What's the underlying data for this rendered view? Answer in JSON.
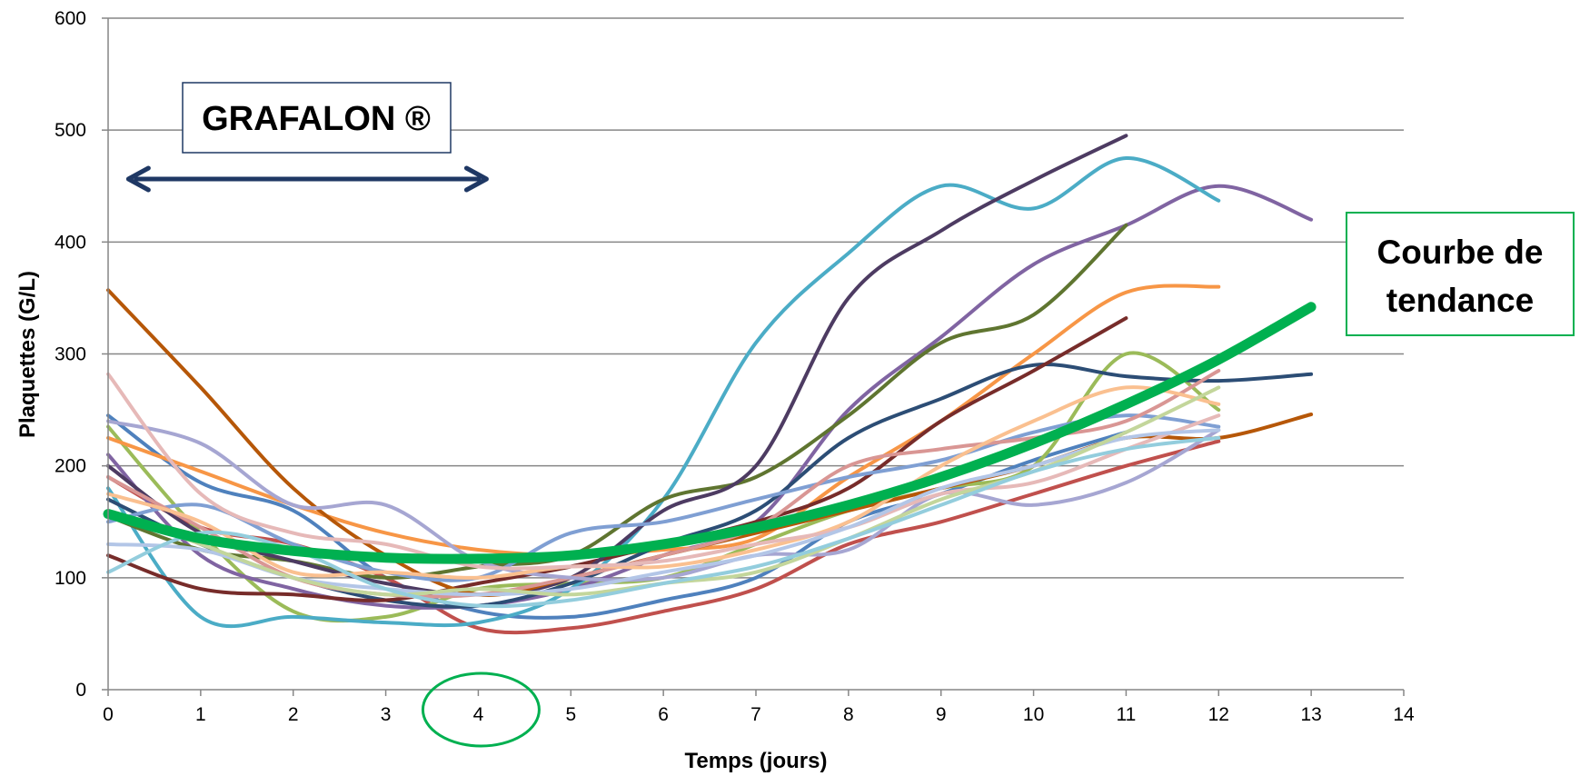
{
  "chart_data": {
    "type": "line",
    "xlabel": "Temps (jours)",
    "ylabel": "Plaquettes (G/L)",
    "xlim": [
      0,
      14
    ],
    "ylim": [
      0,
      600
    ],
    "x_ticks": [
      0,
      1,
      2,
      3,
      4,
      5,
      6,
      7,
      8,
      9,
      10,
      11,
      12,
      13,
      14
    ],
    "y_ticks": [
      0,
      100,
      200,
      300,
      400,
      500,
      600
    ],
    "grid": "horizontal",
    "series": [
      {
        "color": "#4F81BD",
        "points": [
          [
            0,
            245
          ],
          [
            1,
            185
          ],
          [
            2,
            160
          ],
          [
            3,
            100
          ],
          [
            4,
            70
          ],
          [
            5,
            65
          ],
          [
            6,
            80
          ],
          [
            7,
            100
          ],
          [
            8,
            150
          ],
          [
            9,
            175
          ],
          [
            10,
            205
          ],
          [
            11,
            230
          ]
        ]
      },
      {
        "color": "#C0504D",
        "points": [
          [
            0,
            190
          ],
          [
            1,
            145
          ],
          [
            2,
            130
          ],
          [
            3,
            100
          ],
          [
            4,
            55
          ],
          [
            5,
            55
          ],
          [
            6,
            70
          ],
          [
            7,
            90
          ],
          [
            8,
            130
          ],
          [
            9,
            150
          ],
          [
            10,
            175
          ],
          [
            11,
            200
          ],
          [
            12,
            222
          ]
        ]
      },
      {
        "color": "#9BBB59",
        "points": [
          [
            0,
            235
          ],
          [
            1,
            140
          ],
          [
            2,
            70
          ],
          [
            3,
            65
          ],
          [
            4,
            90
          ],
          [
            5,
            95
          ],
          [
            6,
            100
          ],
          [
            7,
            130
          ],
          [
            8,
            160
          ],
          [
            9,
            180
          ],
          [
            10,
            200
          ],
          [
            11,
            300
          ],
          [
            12,
            250
          ]
        ]
      },
      {
        "color": "#8064A2",
        "points": [
          [
            0,
            210
          ],
          [
            1,
            120
          ],
          [
            2,
            90
          ],
          [
            3,
            75
          ],
          [
            4,
            75
          ],
          [
            5,
            90
          ],
          [
            6,
            120
          ],
          [
            7,
            150
          ],
          [
            8,
            250
          ],
          [
            9,
            315
          ],
          [
            10,
            380
          ],
          [
            11,
            415
          ],
          [
            12,
            450
          ],
          [
            13,
            420
          ]
        ]
      },
      {
        "color": "#4BACC6",
        "points": [
          [
            0,
            180
          ],
          [
            1,
            65
          ],
          [
            2,
            65
          ],
          [
            3,
            60
          ],
          [
            4,
            60
          ],
          [
            5,
            90
          ],
          [
            6,
            170
          ],
          [
            7,
            310
          ],
          [
            8,
            390
          ],
          [
            9,
            450
          ],
          [
            10,
            430
          ],
          [
            11,
            475
          ],
          [
            12,
            437
          ]
        ]
      },
      {
        "color": "#F79646",
        "points": [
          [
            0,
            225
          ],
          [
            1,
            195
          ],
          [
            2,
            165
          ],
          [
            3,
            140
          ],
          [
            4,
            125
          ],
          [
            5,
            120
          ],
          [
            6,
            125
          ],
          [
            7,
            135
          ],
          [
            8,
            190
          ],
          [
            9,
            240
          ],
          [
            10,
            300
          ],
          [
            11,
            355
          ],
          [
            12,
            360
          ]
        ]
      },
      {
        "color": "#2C4D75",
        "points": [
          [
            0,
            170
          ],
          [
            1,
            130
          ],
          [
            2,
            100
          ],
          [
            3,
            80
          ],
          [
            4,
            75
          ],
          [
            5,
            95
          ],
          [
            6,
            130
          ],
          [
            7,
            160
          ],
          [
            8,
            225
          ],
          [
            9,
            260
          ],
          [
            10,
            290
          ],
          [
            11,
            280
          ],
          [
            12,
            276
          ],
          [
            13,
            282
          ]
        ]
      },
      {
        "color": "#772C2A",
        "points": [
          [
            0,
            120
          ],
          [
            1,
            90
          ],
          [
            2,
            85
          ],
          [
            3,
            80
          ],
          [
            4,
            95
          ],
          [
            5,
            110
          ],
          [
            6,
            130
          ],
          [
            7,
            150
          ],
          [
            8,
            180
          ],
          [
            9,
            240
          ],
          [
            10,
            285
          ],
          [
            11,
            332
          ]
        ]
      },
      {
        "color": "#5F7530",
        "points": [
          [
            0,
            155
          ],
          [
            1,
            125
          ],
          [
            2,
            115
          ],
          [
            3,
            100
          ],
          [
            4,
            110
          ],
          [
            5,
            120
          ],
          [
            6,
            170
          ],
          [
            7,
            190
          ],
          [
            8,
            245
          ],
          [
            9,
            310
          ],
          [
            10,
            335
          ],
          [
            11,
            415
          ]
        ]
      },
      {
        "color": "#4D3B62",
        "points": [
          [
            0,
            200
          ],
          [
            1,
            140
          ],
          [
            2,
            115
          ],
          [
            3,
            95
          ],
          [
            4,
            85
          ],
          [
            5,
            100
          ],
          [
            6,
            160
          ],
          [
            7,
            200
          ],
          [
            8,
            350
          ],
          [
            9,
            410
          ],
          [
            10,
            455
          ],
          [
            11,
            495
          ]
        ]
      },
      {
        "color": "#B65708",
        "points": [
          [
            0,
            357
          ],
          [
            1,
            270
          ],
          [
            2,
            180
          ],
          [
            3,
            120
          ],
          [
            4,
            85
          ],
          [
            5,
            100
          ],
          [
            6,
            120
          ],
          [
            7,
            140
          ],
          [
            8,
            160
          ],
          [
            9,
            180
          ],
          [
            10,
            200
          ],
          [
            11,
            225
          ],
          [
            12,
            225
          ],
          [
            13,
            246
          ]
        ]
      },
      {
        "color": "#7F9FD3",
        "points": [
          [
            0,
            150
          ],
          [
            1,
            165
          ],
          [
            2,
            130
          ],
          [
            3,
            105
          ],
          [
            4,
            100
          ],
          [
            5,
            140
          ],
          [
            6,
            150
          ],
          [
            7,
            170
          ],
          [
            8,
            190
          ],
          [
            9,
            205
          ],
          [
            10,
            230
          ],
          [
            11,
            245
          ],
          [
            12,
            235
          ]
        ]
      },
      {
        "color": "#D99694",
        "points": [
          [
            0,
            190
          ],
          [
            1,
            145
          ],
          [
            2,
            100
          ],
          [
            3,
            85
          ],
          [
            4,
            85
          ],
          [
            5,
            100
          ],
          [
            6,
            120
          ],
          [
            7,
            145
          ],
          [
            8,
            200
          ],
          [
            9,
            215
          ],
          [
            10,
            225
          ],
          [
            11,
            240
          ],
          [
            12,
            285
          ]
        ]
      },
      {
        "color": "#A6A6D2",
        "points": [
          [
            0,
            240
          ],
          [
            1,
            220
          ],
          [
            2,
            165
          ],
          [
            3,
            165
          ],
          [
            4,
            115
          ],
          [
            5,
            100
          ],
          [
            6,
            100
          ],
          [
            7,
            120
          ],
          [
            8,
            125
          ],
          [
            9,
            175
          ],
          [
            10,
            165
          ],
          [
            11,
            185
          ],
          [
            12,
            232
          ]
        ]
      },
      {
        "color": "#FAC090",
        "points": [
          [
            0,
            175
          ],
          [
            1,
            150
          ],
          [
            2,
            105
          ],
          [
            3,
            105
          ],
          [
            4,
            100
          ],
          [
            5,
            110
          ],
          [
            6,
            110
          ],
          [
            7,
            125
          ],
          [
            8,
            150
          ],
          [
            9,
            200
          ],
          [
            10,
            240
          ],
          [
            11,
            270
          ],
          [
            12,
            255
          ]
        ]
      },
      {
        "color": "#E6B9B8",
        "points": [
          [
            0,
            282
          ],
          [
            1,
            175
          ],
          [
            2,
            140
          ],
          [
            3,
            130
          ],
          [
            4,
            110
          ],
          [
            5,
            110
          ],
          [
            6,
            115
          ],
          [
            7,
            130
          ],
          [
            8,
            145
          ],
          [
            9,
            175
          ],
          [
            10,
            185
          ],
          [
            11,
            215
          ],
          [
            12,
            245
          ]
        ]
      },
      {
        "color": "#B3C6E7",
        "points": [
          [
            0,
            130
          ],
          [
            1,
            125
          ],
          [
            2,
            100
          ],
          [
            3,
            90
          ],
          [
            4,
            85
          ],
          [
            5,
            90
          ],
          [
            6,
            105
          ],
          [
            7,
            120
          ],
          [
            8,
            145
          ],
          [
            9,
            180
          ],
          [
            10,
            200
          ],
          [
            11,
            225
          ],
          [
            12,
            232
          ]
        ]
      },
      {
        "color": "#C3D69B",
        "points": [
          [
            0,
            160
          ],
          [
            1,
            130
          ],
          [
            2,
            100
          ],
          [
            3,
            85
          ],
          [
            4,
            90
          ],
          [
            5,
            85
          ],
          [
            6,
            95
          ],
          [
            7,
            105
          ],
          [
            8,
            135
          ],
          [
            9,
            170
          ],
          [
            10,
            195
          ],
          [
            11,
            230
          ],
          [
            12,
            270
          ]
        ]
      },
      {
        "color": "#93CDDD",
        "points": [
          [
            0,
            105
          ],
          [
            1,
            140
          ],
          [
            2,
            125
          ],
          [
            3,
            90
          ],
          [
            4,
            75
          ],
          [
            5,
            80
          ],
          [
            6,
            95
          ],
          [
            7,
            110
          ],
          [
            8,
            135
          ],
          [
            9,
            165
          ],
          [
            10,
            195
          ],
          [
            11,
            215
          ],
          [
            12,
            225
          ]
        ]
      }
    ],
    "trend": {
      "color": "#00B050",
      "points": [
        [
          0,
          157
        ],
        [
          1,
          135
        ],
        [
          2,
          124
        ],
        [
          3,
          118
        ],
        [
          4,
          117
        ],
        [
          5,
          120
        ],
        [
          6,
          130
        ],
        [
          7,
          145
        ],
        [
          8,
          165
        ],
        [
          9,
          190
        ],
        [
          10,
          220
        ],
        [
          11,
          255
        ],
        [
          12,
          295
        ],
        [
          13,
          342
        ]
      ]
    }
  },
  "annotations": {
    "grafalon_label": "GRAFALON ®",
    "trend_label_line1": "Courbe de",
    "trend_label_line2": "tendance",
    "grafalon_arrow_range": [
      0.2,
      4.0
    ],
    "circle_highlight_x": 4
  }
}
